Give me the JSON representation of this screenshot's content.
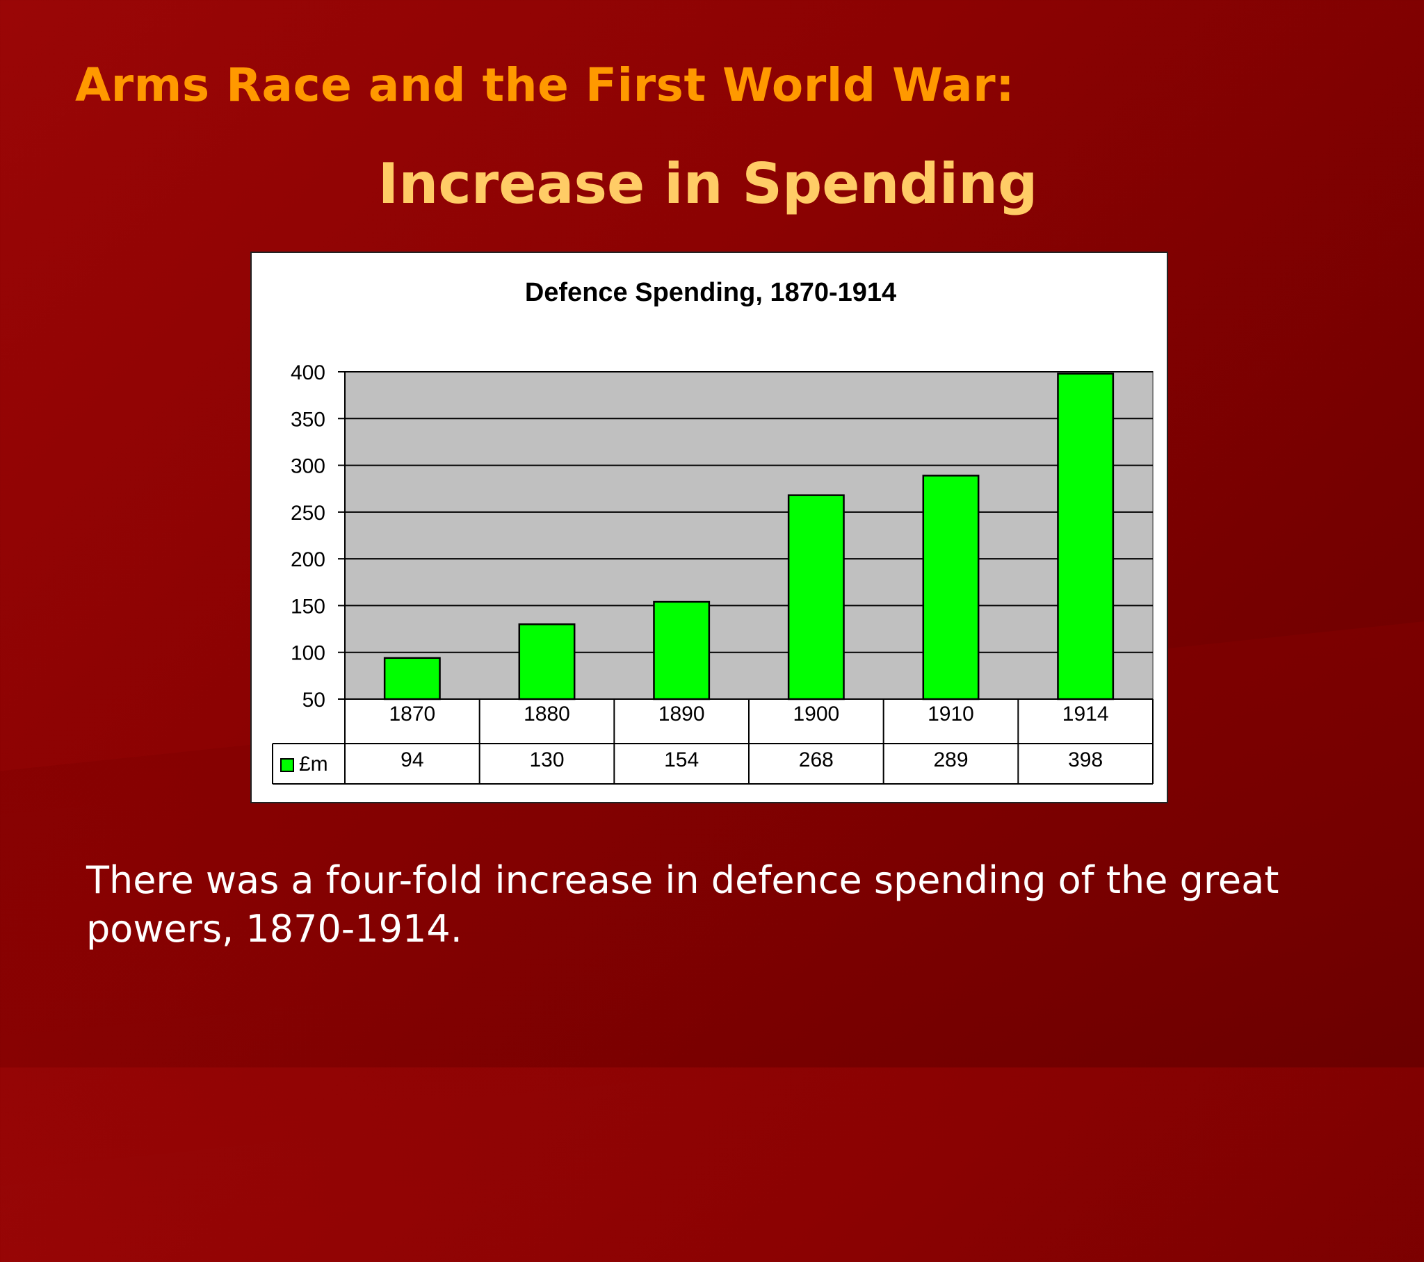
{
  "slide": {
    "title": "Arms Race and the First World War:",
    "subtitle": "Increase in Spending",
    "caption": "There was a four-fold increase in defence spending of the great powers, 1870-1914."
  },
  "chart_data": {
    "type": "bar",
    "title": "Defence Spending, 1870-1914",
    "categories": [
      "1870",
      "1880",
      "1890",
      "1900",
      "1910",
      "1914"
    ],
    "series": [
      {
        "name": "£m",
        "values": [
          94,
          130,
          154,
          268,
          289,
          398
        ],
        "color": "#00ff00"
      }
    ],
    "ylim": [
      50,
      400
    ],
    "yticks": [
      50,
      100,
      150,
      200,
      250,
      300,
      350,
      400
    ],
    "grid": true,
    "plot_background": "#c0c0c0",
    "data_table": true
  }
}
